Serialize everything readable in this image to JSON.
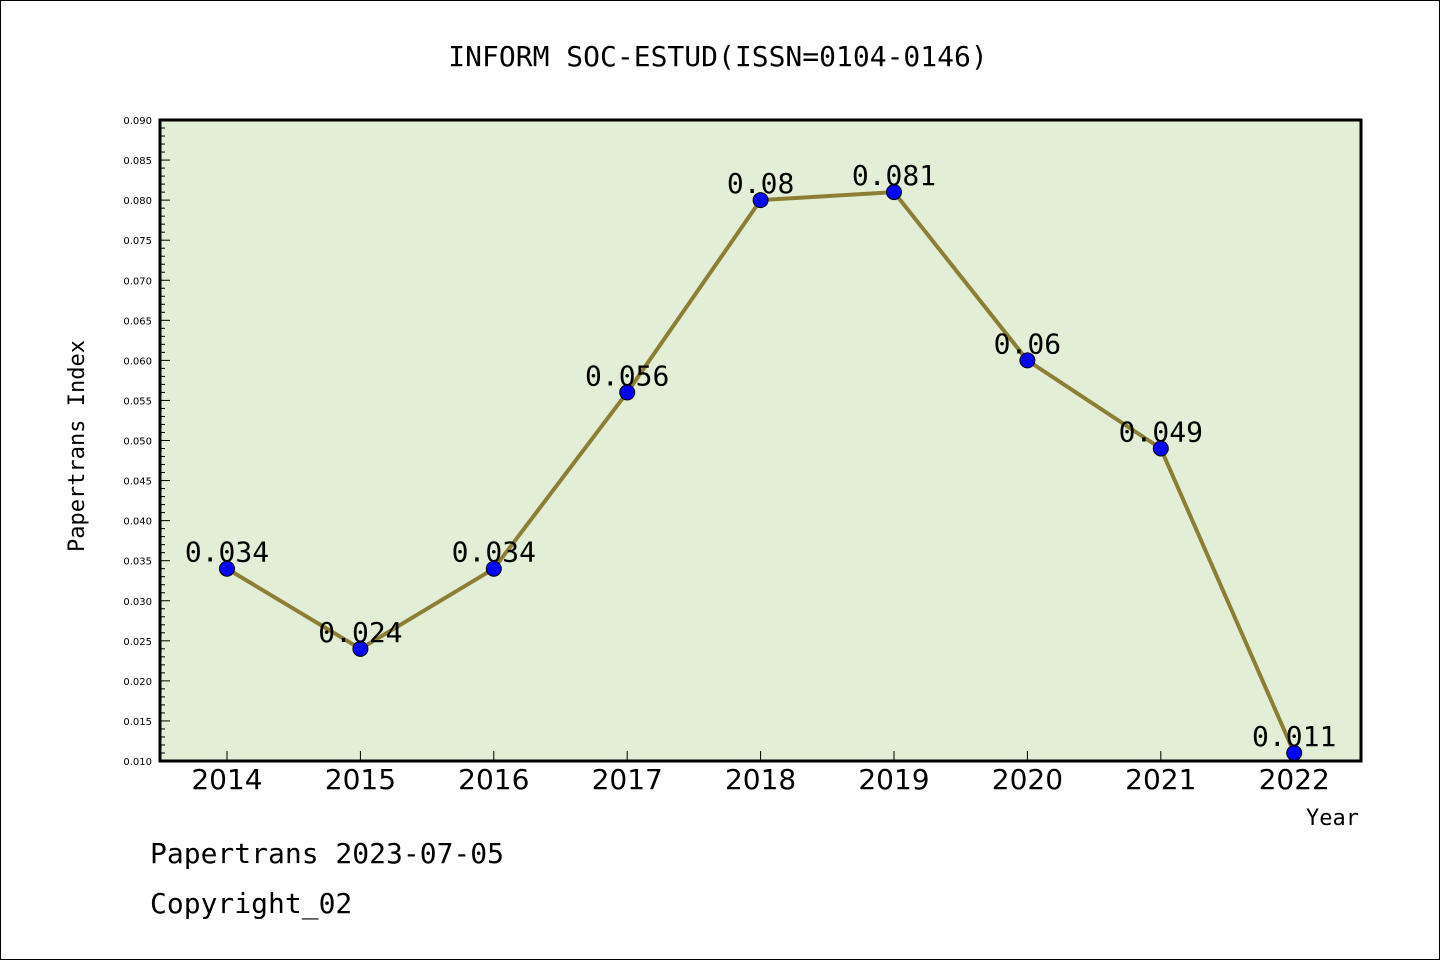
{
  "chart_data": {
    "type": "line",
    "title": "INFORM SOC-ESTUD(ISSN=0104-0146)",
    "xlabel": "Year",
    "ylabel": "Papertrans Index",
    "categories": [
      "2014",
      "2015",
      "2016",
      "2017",
      "2018",
      "2019",
      "2020",
      "2021",
      "2022"
    ],
    "series": [
      {
        "values": [
          0.034,
          0.024,
          0.034,
          0.056,
          0.08,
          0.081,
          0.06,
          0.049,
          0.011
        ],
        "labels": [
          "0.034",
          "0.024",
          "0.034",
          "0.056",
          "0.08",
          "0.081",
          "0.06",
          "0.049",
          "0.011"
        ]
      }
    ],
    "ylim": [
      0.01,
      0.09
    ],
    "yticks": [
      "0.010",
      "0.015",
      "0.020",
      "0.025",
      "0.030",
      "0.035",
      "0.040",
      "0.045",
      "0.050",
      "0.055",
      "0.060",
      "0.065",
      "0.070",
      "0.075",
      "0.080",
      "0.085",
      "0.090"
    ],
    "grid": false,
    "colors": {
      "plot_background": "#e2efd6",
      "line": "#8c7f35",
      "marker": "#0000ff"
    }
  },
  "footer": {
    "line1": "Papertrans 2023-07-05",
    "line2": "Copyright_02"
  }
}
